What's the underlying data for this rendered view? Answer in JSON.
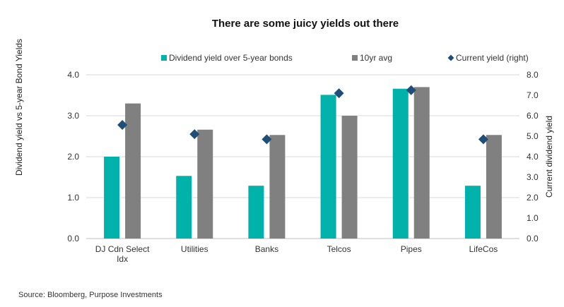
{
  "chart_data": {
    "type": "bar",
    "title": "There are some juicy yields out there",
    "categories": [
      "DJ Cdn Select Idx",
      "Utilities",
      "Banks",
      "Telcos",
      "Pipes",
      "LifeCos"
    ],
    "category_lines": [
      [
        "DJ Cdn Select",
        "Idx"
      ],
      [
        "Utilities"
      ],
      [
        "Banks"
      ],
      [
        "Telcos"
      ],
      [
        "Pipes"
      ],
      [
        "LifeCos"
      ]
    ],
    "series": [
      {
        "name": "Dividend yield over 5-year bonds",
        "kind": "bar",
        "axis": "left",
        "color": "#00b2a9",
        "values": [
          2.0,
          1.53,
          1.29,
          3.51,
          3.66,
          1.29
        ]
      },
      {
        "name": "10yr avg",
        "kind": "bar",
        "axis": "left",
        "color": "#808080",
        "values": [
          3.3,
          2.66,
          2.53,
          3.0,
          3.7,
          2.53
        ]
      },
      {
        "name": "Current yield (right)",
        "kind": "marker",
        "axis": "right",
        "color": "#1f4e79",
        "values": [
          5.55,
          5.1,
          4.85,
          7.1,
          7.25,
          4.85
        ]
      }
    ],
    "ylabel": "Dividend yield vs 5-year Bond Yields",
    "y2label": "Current dividend yield",
    "ylim": [
      0,
      4
    ],
    "y2lim": [
      0,
      8
    ],
    "yticks": [
      "0.0",
      "1.0",
      "2.0",
      "3.0",
      "4.0"
    ],
    "y2ticks": [
      "0.0",
      "1.0",
      "2.0",
      "3.0",
      "4.0",
      "5.0",
      "6.0",
      "7.0",
      "8.0"
    ],
    "grid": true,
    "legend_position": "top"
  },
  "source": "Source: Bloomberg, Purpose Investments"
}
